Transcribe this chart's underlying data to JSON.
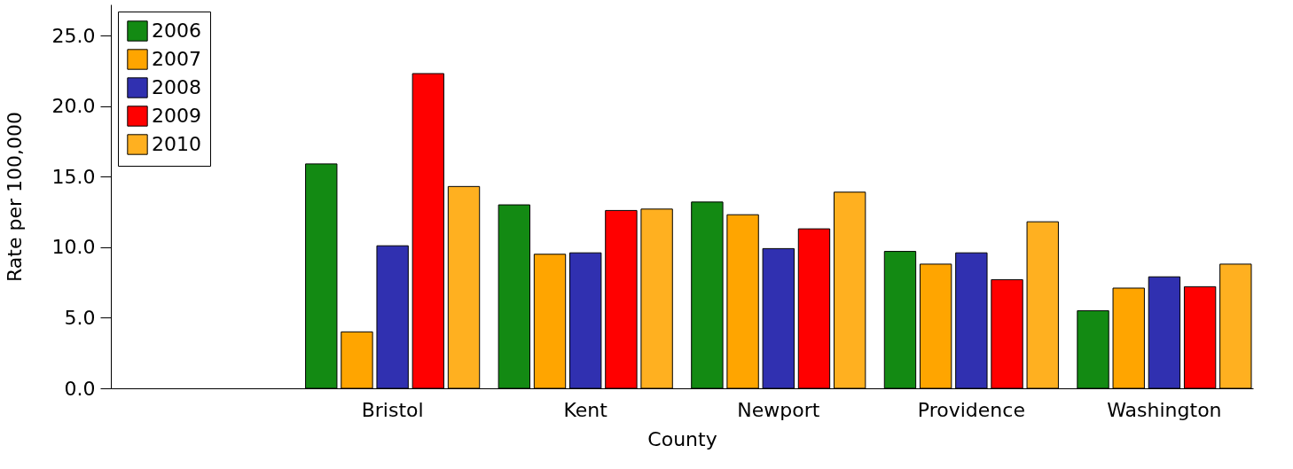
{
  "chart_data": {
    "type": "bar",
    "xlabel": "County",
    "ylabel": "Rate per 100,000",
    "categories": [
      null,
      "Bristol",
      "Kent",
      "Newport",
      "Providence",
      "Washington"
    ],
    "series": [
      {
        "name": "2006",
        "color": "#138a13",
        "values": [
          null,
          15.9,
          13.0,
          13.2,
          9.7,
          5.5
        ]
      },
      {
        "name": "2007",
        "color": "#ffa500",
        "values": [
          null,
          4.0,
          9.5,
          12.3,
          8.8,
          7.1
        ]
      },
      {
        "name": "2008",
        "color": "#3030b0",
        "values": [
          null,
          10.1,
          9.6,
          9.9,
          9.6,
          7.9
        ]
      },
      {
        "name": "2009",
        "color": "#ff0000",
        "values": [
          null,
          22.3,
          12.6,
          11.3,
          7.7,
          7.2
        ]
      },
      {
        "name": "2010",
        "color": "#ffb020",
        "values": [
          null,
          14.3,
          12.7,
          13.9,
          11.8,
          8.8
        ]
      }
    ],
    "ylim": [
      0,
      27.2
    ],
    "yticks": [
      {
        "value": 0,
        "label": "0.0"
      },
      {
        "value": 5,
        "label": "5.0"
      },
      {
        "value": 10,
        "label": "10.0"
      },
      {
        "value": 15,
        "label": "15.0"
      },
      {
        "value": 20,
        "label": "20.0"
      },
      {
        "value": 25,
        "label": "25.0"
      }
    ],
    "grid": false,
    "legend": "top left"
  }
}
